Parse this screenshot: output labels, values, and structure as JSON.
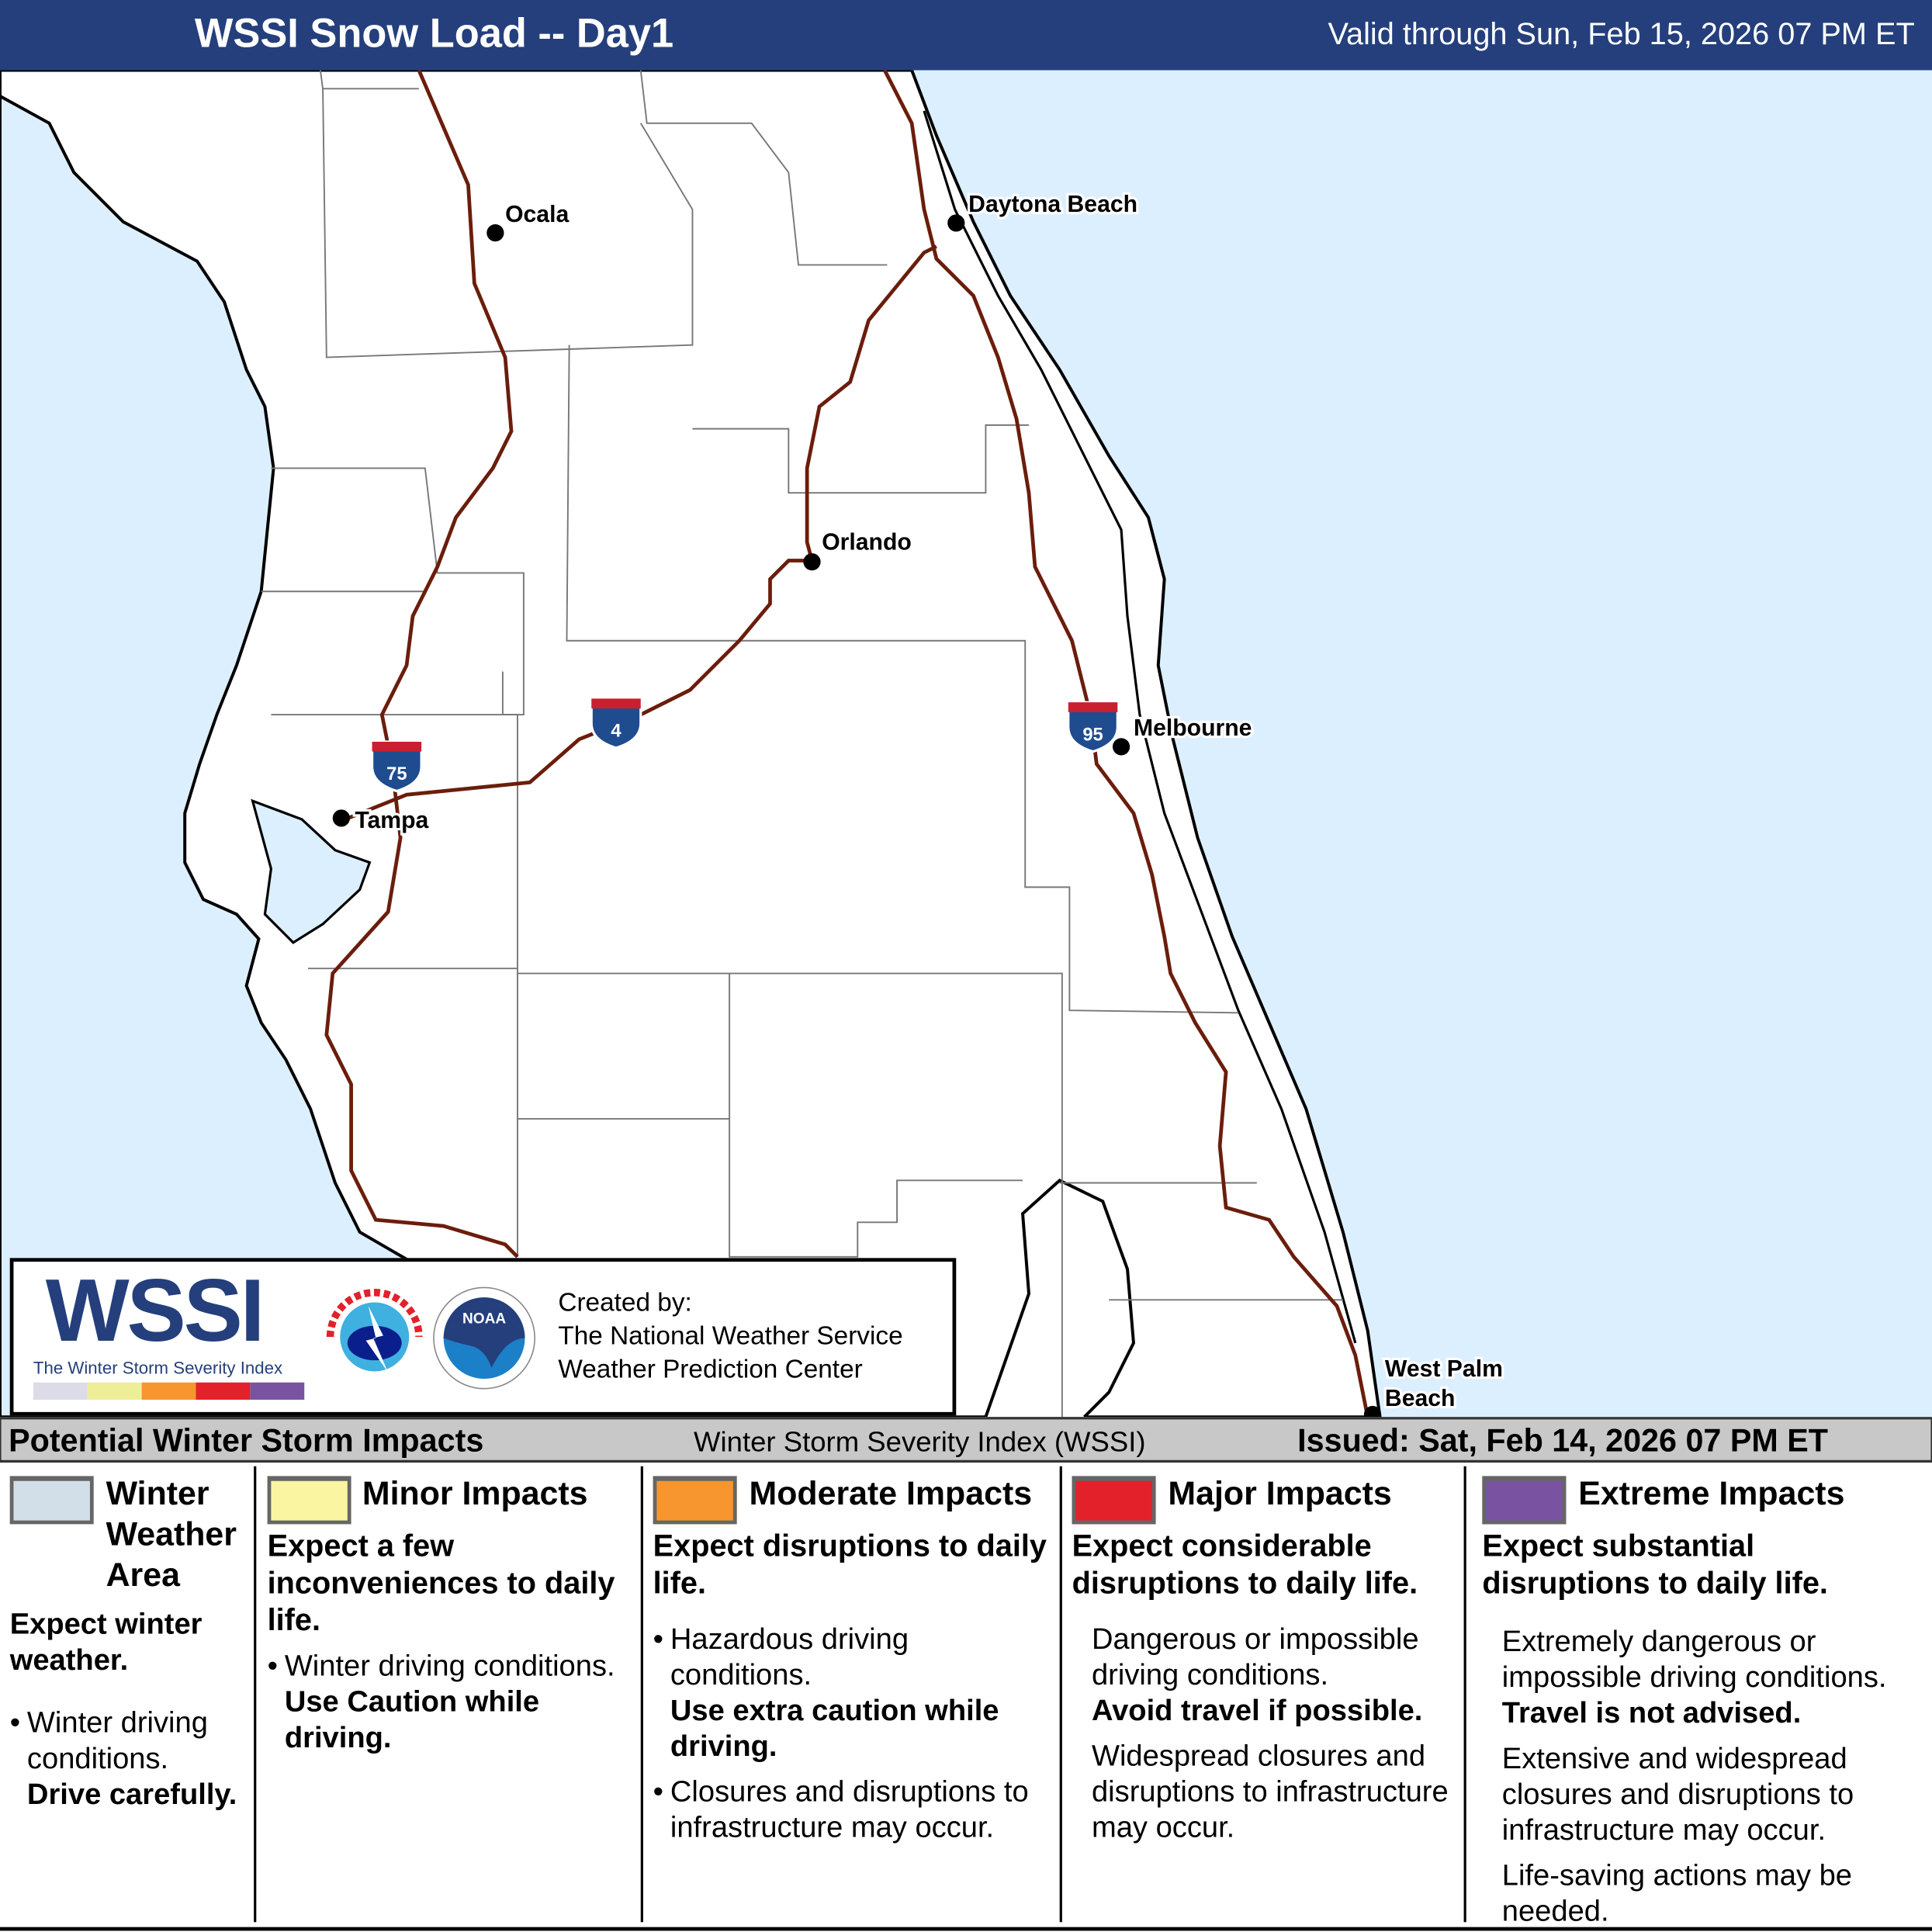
{
  "header": {
    "title": "WSSI Snow Load -- Day1",
    "valid": "Valid through Sun, Feb 15, 2026 07 PM ET"
  },
  "map": {
    "colors": {
      "water": "#dcefff",
      "land": "#ffffff",
      "interstate": "#6b1d0c",
      "header": "#243f7c"
    },
    "cities": [
      {
        "name": "Ocala"
      },
      {
        "name": "Daytona Beach"
      },
      {
        "name": "Orlando"
      },
      {
        "name": "Melbourne"
      },
      {
        "name": "Tampa"
      },
      {
        "name": "West Palm",
        "name2": "Beach"
      }
    ],
    "interstates": [
      "75",
      "4",
      "95"
    ]
  },
  "logo": {
    "wordmark": "WSSI",
    "tagline": "The Winter Storm Severity Index",
    "nws_seal": "NATIONAL WEATHER SERVICE",
    "noaa_seal": "NOAA",
    "credits": [
      "Created by:",
      "The National Weather Service",
      "Weather Prediction Center"
    ]
  },
  "legend_bar": {
    "left": "Potential Winter Storm Impacts",
    "center": "Winter Storm Severity Index (WSSI)",
    "right": "Issued: Sat, Feb 14, 2026 07 PM ET"
  },
  "legend": [
    {
      "title": "Winter Weather Area",
      "color": "#d3dfe8",
      "summary": "Expect winter weather.",
      "bullet": "Winter driving conditions.",
      "bold": "Drive carefully."
    },
    {
      "title": "Minor Impacts",
      "color": "#faf5a0",
      "summary": "Expect a few inconveniences to daily life.",
      "bullet": "Winter driving conditions.",
      "bold": "Use Caution while driving."
    },
    {
      "title": "Moderate Impacts",
      "color": "#f7962e",
      "summary": "Expect disruptions to daily life.",
      "bullet": "Hazardous driving conditions.",
      "bold": "Use extra caution while driving.",
      "bullet2": "Closures and disruptions to infrastructure may occur."
    },
    {
      "title": "Major Impacts",
      "color": "#e3212a",
      "summary": "Expect considerable disruptions to daily life.",
      "bullet": "Dangerous or impossible driving conditions.",
      "bold": "Avoid travel if possible.",
      "bullet2": "Widespread closures and disruptions to infrastructure may occur."
    },
    {
      "title": "Extreme Impacts",
      "color": "#7a52a2",
      "summary": "Expect substantial disruptions to daily life.",
      "bullet": "Extremely dangerous or impossible driving conditions.",
      "bold": "Travel is not advised.",
      "bullet2": "Extensive and widespread closures and disruptions to infrastructure may occur.",
      "bullet3": "Life-saving actions may be needed."
    }
  ]
}
